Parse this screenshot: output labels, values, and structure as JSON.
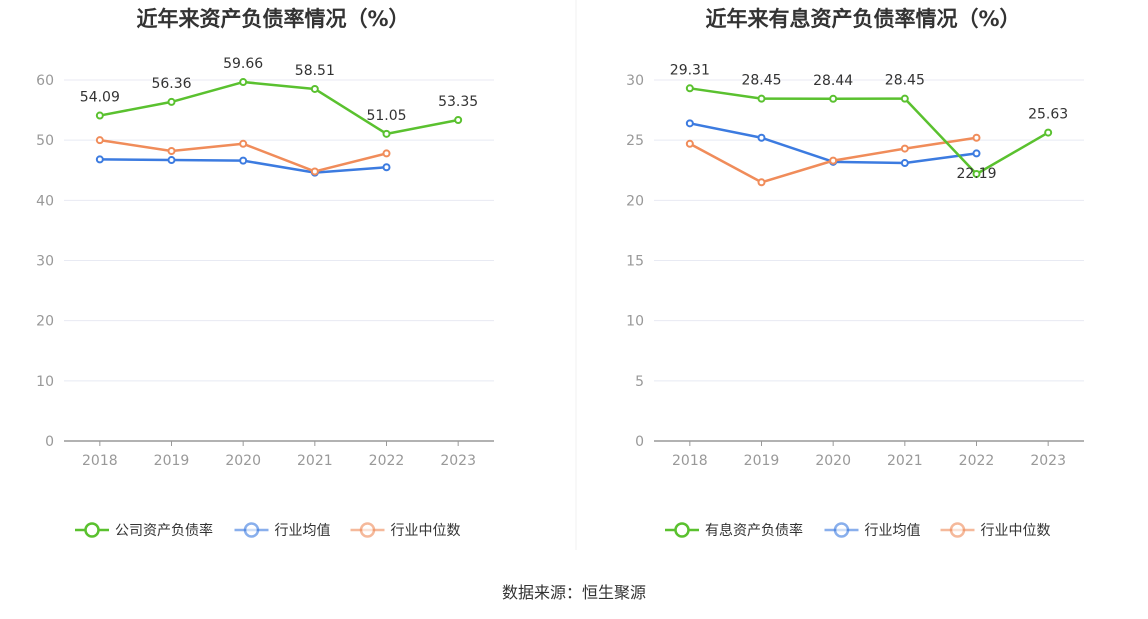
{
  "source_note": "数据来源：恒生聚源",
  "chart_data": [
    {
      "type": "line",
      "title": "近年来资产负债率情况（%）",
      "categories": [
        "2018",
        "2019",
        "2020",
        "2021",
        "2022",
        "2023"
      ],
      "ylim": [
        0,
        60
      ],
      "yticks": [
        0,
        10,
        20,
        30,
        40,
        50,
        60
      ],
      "grid": true,
      "legend_position": "bottom",
      "series": [
        {
          "name": "公司资产负债率",
          "color": "#5ac12f",
          "values": [
            54.09,
            56.36,
            59.66,
            58.51,
            51.05,
            53.35
          ],
          "labels": [
            "54.09",
            "56.36",
            "59.66",
            "58.51",
            "51.05",
            "53.35"
          ]
        },
        {
          "name": "行业均值",
          "color": "#3c7be0",
          "values": [
            46.8,
            46.7,
            46.6,
            44.6,
            45.5,
            null
          ]
        },
        {
          "name": "行业中位数",
          "color": "#f08c5a",
          "values": [
            50.0,
            48.2,
            49.4,
            44.8,
            47.8,
            null
          ]
        }
      ]
    },
    {
      "type": "line",
      "title": "近年来有息资产负债率情况（%）",
      "categories": [
        "2018",
        "2019",
        "2020",
        "2021",
        "2022",
        "2023"
      ],
      "ylim": [
        0,
        30
      ],
      "yticks": [
        0,
        5,
        10,
        15,
        20,
        25,
        30
      ],
      "grid": true,
      "legend_position": "bottom",
      "series": [
        {
          "name": "有息资产负债率",
          "color": "#5ac12f",
          "values": [
            29.31,
            28.45,
            28.44,
            28.45,
            22.19,
            25.63
          ],
          "labels": [
            "29.31",
            "28.45",
            "28.44",
            "28.45",
            "22.19",
            "25.63"
          ]
        },
        {
          "name": "行业均值",
          "color": "#3c7be0",
          "values": [
            26.4,
            25.2,
            23.2,
            23.1,
            23.9,
            null
          ]
        },
        {
          "name": "行业中位数",
          "color": "#f08c5a",
          "values": [
            24.7,
            21.5,
            23.3,
            24.3,
            25.2,
            null
          ]
        }
      ]
    }
  ]
}
